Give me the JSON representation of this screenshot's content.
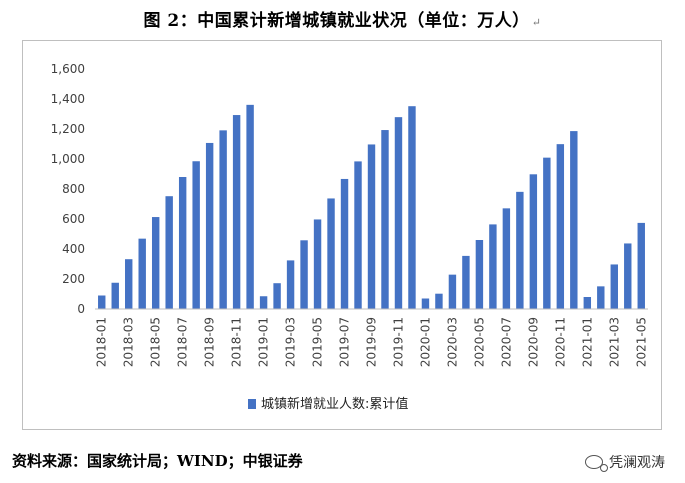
{
  "title": "图 2：中国累计新增城镇就业状况（单位：万人）",
  "para_mark": "↵",
  "source": "资料来源：国家统计局；WIND；中银证券",
  "brand": "凭澜观涛",
  "chart_data": {
    "type": "bar",
    "categories": [
      "2018-01",
      "2018-02",
      "2018-03",
      "2018-04",
      "2018-05",
      "2018-06",
      "2018-07",
      "2018-08",
      "2018-09",
      "2018-10",
      "2018-11",
      "2018-12",
      "2019-01",
      "2019-02",
      "2019-03",
      "2019-04",
      "2019-05",
      "2019-06",
      "2019-07",
      "2019-08",
      "2019-09",
      "2019-10",
      "2019-11",
      "2019-12",
      "2020-01",
      "2020-02",
      "2020-03",
      "2020-04",
      "2020-05",
      "2020-06",
      "2020-07",
      "2020-08",
      "2020-09",
      "2020-10",
      "2020-11",
      "2020-12",
      "2021-01",
      "2021-02",
      "2021-03",
      "2021-04",
      "2021-05"
    ],
    "tick_labels": [
      "2018-01",
      "2018-03",
      "2018-05",
      "2018-07",
      "2018-09",
      "2018-11",
      "2019-01",
      "2019-03",
      "2019-05",
      "2019-07",
      "2019-09",
      "2019-11",
      "2020-01",
      "2020-03",
      "2020-05",
      "2020-07",
      "2020-09",
      "2020-11",
      "2021-01",
      "2021-03",
      "2021-05"
    ],
    "series": [
      {
        "name": "城镇新增就业人数:累计值",
        "color": "#4472C4",
        "values": [
          90,
          175,
          332,
          469,
          613,
          752,
          880,
          985,
          1107,
          1191,
          1293,
          1361,
          85,
          172,
          324,
          458,
          597,
          737,
          867,
          984,
          1097,
          1193,
          1279,
          1352,
          70,
          102,
          229,
          354,
          460,
          564,
          671,
          781,
          898,
          1009,
          1099,
          1186,
          80,
          151,
          297,
          437,
          574
        ]
      }
    ],
    "y_ticks": [
      "0",
      "200",
      "400",
      "600",
      "800",
      "1,000",
      "1,200",
      "1,400",
      "1,600"
    ],
    "ylim": [
      0,
      1600
    ],
    "legend_position": "bottom",
    "grid": false
  }
}
